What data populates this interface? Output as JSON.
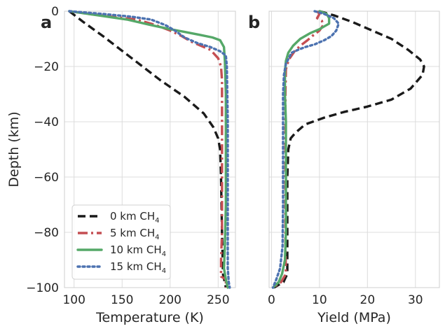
{
  "chart_data": [
    {
      "type": "line",
      "panel_label": "a",
      "xlabel": "Temperature (K)",
      "ylabel": "Depth (km)",
      "xlim": [
        90,
        268
      ],
      "ylim": [
        -100,
        0
      ],
      "xticks": [
        100,
        150,
        200,
        250
      ],
      "yticks": [
        0,
        -20,
        -40,
        -60,
        -80,
        -100
      ],
      "grid": true,
      "legend": {
        "placement": "lower-left",
        "entries": [
          {
            "prefix": "0 km CH",
            "sub": "4"
          },
          {
            "prefix": "5 km CH",
            "sub": "4"
          },
          {
            "prefix": "10 km CH",
            "sub": "4"
          },
          {
            "prefix": "15 km CH",
            "sub": "4"
          }
        ]
      },
      "series": [
        {
          "name": "0 km CH4",
          "color": "#1a1a1a",
          "style": "dashed",
          "points": [
            [
              95,
              0
            ],
            [
              110,
              -4
            ],
            [
              130,
              -9
            ],
            [
              160,
              -17
            ],
            [
              190,
              -25
            ],
            [
              215,
              -31
            ],
            [
              235,
              -37
            ],
            [
              245,
              -42
            ],
            [
              250,
              -46
            ],
            [
              252,
              -50
            ],
            [
              253,
              -60
            ],
            [
              254,
              -80
            ],
            [
              255,
              -95
            ],
            [
              258,
              -100
            ]
          ]
        },
        {
          "name": "5 km CH4",
          "color": "#c44e52",
          "style": "dashdot",
          "points": [
            [
              95,
              0
            ],
            [
              115,
              -1
            ],
            [
              140,
              -2
            ],
            [
              165,
              -3
            ],
            [
              185,
              -5
            ],
            [
              200,
              -7
            ],
            [
              212,
              -9
            ],
            [
              222,
              -11
            ],
            [
              232,
              -12.5
            ],
            [
              242,
              -14
            ],
            [
              250,
              -17
            ],
            [
              253,
              -20
            ],
            [
              254,
              -25
            ],
            [
              254,
              -40
            ],
            [
              254,
              -60
            ],
            [
              254,
              -80
            ],
            [
              253,
              -90
            ],
            [
              253,
              -96
            ],
            [
              258,
              -97
            ],
            [
              258,
              -100
            ]
          ]
        },
        {
          "name": "10 km CH4",
          "color": "#55a868",
          "style": "solid",
          "points": [
            [
              95,
              0
            ],
            [
              125,
              -1.5
            ],
            [
              155,
              -3
            ],
            [
              180,
              -5
            ],
            [
              200,
              -6.5
            ],
            [
              215,
              -7.5
            ],
            [
              230,
              -8.5
            ],
            [
              244,
              -9.5
            ],
            [
              252,
              -10.5
            ],
            [
              256,
              -13
            ],
            [
              257,
              -18
            ],
            [
              258,
              -30
            ],
            [
              258,
              -50
            ],
            [
              258,
              -70
            ],
            [
              257,
              -85
            ],
            [
              256,
              -93
            ],
            [
              258,
              -97
            ],
            [
              260,
              -100
            ]
          ]
        },
        {
          "name": "15 km CH4",
          "color": "#4c72b0",
          "style": "dotted",
          "points": [
            [
              95,
              0
            ],
            [
              130,
              -1
            ],
            [
              160,
              -2
            ],
            [
              180,
              -3
            ],
            [
              195,
              -5
            ],
            [
              205,
              -7
            ],
            [
              215,
              -9.5
            ],
            [
              228,
              -11.5
            ],
            [
              242,
              -13
            ],
            [
              252,
              -14.5
            ],
            [
              258,
              -16
            ],
            [
              259,
              -20
            ],
            [
              260,
              -40
            ],
            [
              260,
              -60
            ],
            [
              260,
              -80
            ],
            [
              260,
              -93
            ],
            [
              261,
              -98
            ],
            [
              262,
              -100
            ]
          ]
        }
      ]
    },
    {
      "type": "line",
      "panel_label": "b",
      "xlabel": "Yield (MPa)",
      "ylabel": "",
      "xlim": [
        -0.5,
        35
      ],
      "ylim": [
        -100,
        0
      ],
      "xticks": [
        0,
        10,
        20,
        30
      ],
      "yticks": [
        0,
        -20,
        -40,
        -60,
        -80,
        -100
      ],
      "grid": true,
      "series": [
        {
          "name": "0 km CH4",
          "color": "#1a1a1a",
          "style": "dashed",
          "points": [
            [
              10,
              0
            ],
            [
              13,
              -1.5
            ],
            [
              17,
              -4
            ],
            [
              21,
              -7
            ],
            [
              25,
              -10
            ],
            [
              28.5,
              -14
            ],
            [
              31,
              -17.5
            ],
            [
              31.8,
              -20
            ],
            [
              31.5,
              -23
            ],
            [
              29,
              -28
            ],
            [
              25,
              -32
            ],
            [
              20,
              -34.5
            ],
            [
              15,
              -36.5
            ],
            [
              11,
              -38.5
            ],
            [
              7,
              -41
            ],
            [
              5,
              -44
            ],
            [
              4,
              -46
            ],
            [
              3.5,
              -50
            ],
            [
              3.3,
              -60
            ],
            [
              3.3,
              -70
            ],
            [
              3.3,
              -80
            ],
            [
              3.3,
              -95
            ],
            [
              2.5,
              -98
            ],
            [
              0.5,
              -100
            ]
          ]
        },
        {
          "name": "5 km CH4",
          "color": "#c44e52",
          "style": "dashdot",
          "points": [
            [
              9.5,
              0
            ],
            [
              10,
              -1
            ],
            [
              9.5,
              -2.5
            ],
            [
              10.5,
              -3.5
            ],
            [
              10.8,
              -5
            ],
            [
              10,
              -7
            ],
            [
              8.5,
              -9
            ],
            [
              7.5,
              -10.5
            ],
            [
              6,
              -12.5
            ],
            [
              4.8,
              -14.5
            ],
            [
              3.6,
              -17.5
            ],
            [
              3.0,
              -21
            ],
            [
              2.9,
              -30
            ],
            [
              2.9,
              -50
            ],
            [
              2.9,
              -70
            ],
            [
              2.9,
              -85
            ],
            [
              3,
              -95
            ],
            [
              2,
              -98
            ],
            [
              0.3,
              -100
            ]
          ]
        },
        {
          "name": "10 km CH4",
          "color": "#55a868",
          "style": "solid",
          "points": [
            [
              10,
              0
            ],
            [
              11.5,
              -1
            ],
            [
              12,
              -2.5
            ],
            [
              12,
              -4.5
            ],
            [
              11,
              -5.5
            ],
            [
              10,
              -6.5
            ],
            [
              8,
              -8
            ],
            [
              6,
              -10
            ],
            [
              4.5,
              -12.5
            ],
            [
              3.5,
              -15
            ],
            [
              3.0,
              -18
            ],
            [
              2.8,
              -22
            ],
            [
              2.8,
              -30
            ],
            [
              3,
              -40
            ],
            [
              3,
              -50
            ],
            [
              3,
              -60
            ],
            [
              3,
              -70
            ],
            [
              3,
              -80
            ],
            [
              2.8,
              -90
            ],
            [
              2.2,
              -95
            ],
            [
              1.5,
              -98
            ],
            [
              0.3,
              -100
            ]
          ]
        },
        {
          "name": "15 km CH4",
          "color": "#4c72b0",
          "style": "dotted",
          "points": [
            [
              9,
              0
            ],
            [
              11,
              -1
            ],
            [
              13,
              -2.5
            ],
            [
              14,
              -4.5
            ],
            [
              13.5,
              -7
            ],
            [
              12.5,
              -9
            ],
            [
              11,
              -10.5
            ],
            [
              9,
              -12
            ],
            [
              7,
              -13
            ],
            [
              5.5,
              -14
            ],
            [
              4.2,
              -15
            ],
            [
              3.6,
              -17
            ],
            [
              3.0,
              -19
            ],
            [
              2.6,
              -23
            ],
            [
              2.4,
              -30
            ],
            [
              2.4,
              -50
            ],
            [
              2.4,
              -70
            ],
            [
              2.3,
              -85
            ],
            [
              1.8,
              -93
            ],
            [
              1,
              -97
            ],
            [
              0.3,
              -100
            ]
          ]
        }
      ]
    }
  ]
}
